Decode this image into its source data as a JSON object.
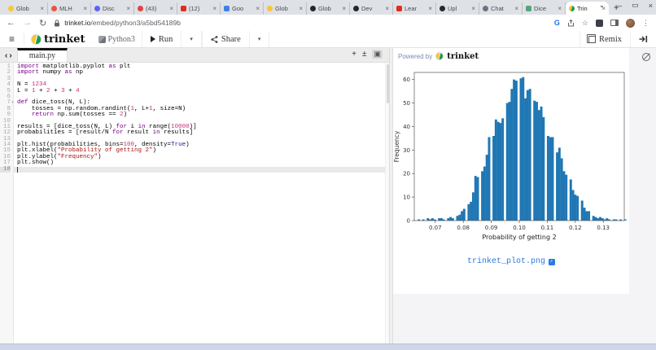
{
  "browser": {
    "tabs": [
      {
        "label": "Glob",
        "icon": "globe-yellow-favicon",
        "color": "#f8c735",
        "shape": "circle",
        "active": false
      },
      {
        "label": "MLH",
        "icon": "pencil-favicon",
        "color": "#e8563f",
        "shape": "circle",
        "active": false
      },
      {
        "label": "Disc",
        "icon": "discord-favicon",
        "color": "#5865f2",
        "shape": "circle",
        "active": false
      },
      {
        "label": "(43)",
        "icon": "red-badge-favicon",
        "color": "#e04343",
        "shape": "circle",
        "active": false
      },
      {
        "label": "(12)",
        "icon": "youtube-favicon",
        "color": "#e02b20",
        "shape": "square",
        "active": false
      },
      {
        "label": "Goo",
        "icon": "google-docs-favicon",
        "color": "#3b82e8",
        "shape": "square",
        "active": false
      },
      {
        "label": "Glob",
        "icon": "globe-yellow-favicon",
        "color": "#f8c735",
        "shape": "circle",
        "active": false
      },
      {
        "label": "Glob",
        "icon": "dark-circle-favicon",
        "color": "#23272e",
        "shape": "circle",
        "active": false
      },
      {
        "label": "Dev",
        "icon": "dark-circle-favicon",
        "color": "#23272e",
        "shape": "circle",
        "active": false
      },
      {
        "label": "Lear",
        "icon": "youtube-favicon",
        "color": "#e02b20",
        "shape": "square",
        "active": false
      },
      {
        "label": "Upl",
        "icon": "github-favicon",
        "color": "#24292f",
        "shape": "circle",
        "active": false
      },
      {
        "label": "Chat",
        "icon": "gray-sphere-favicon",
        "color": "#6b7280",
        "shape": "circle",
        "active": false
      },
      {
        "label": "Dice",
        "icon": "green-square-favicon",
        "color": "#55a47b",
        "shape": "square",
        "active": false
      },
      {
        "label": "Trin",
        "icon": "trinket-favicon",
        "color": "trinket",
        "shape": "circle",
        "active": true
      }
    ],
    "close_glyph": "×",
    "new_tab": "+",
    "window_controls": {
      "search": "⌄",
      "minimize": "—",
      "maximize": "▭",
      "close": "×"
    },
    "nav": {
      "back": "←",
      "forward": "→",
      "reload": "↻"
    },
    "url_host": "trinket.io",
    "url_path": "/embed/python3/a5bd54189b",
    "right_icons": {
      "g": "G",
      "star": "☆",
      "kebab": "⋮"
    }
  },
  "toolbar": {
    "hamburger": "≡",
    "brand": "trinket",
    "language": "Python3",
    "run_label": "Run",
    "share_label": "Share",
    "caret": "▾",
    "remix_label": "Remix"
  },
  "editor": {
    "tab": "main.py",
    "nav_left": "‹",
    "nav_right": "›",
    "add_icon": "+",
    "upload_icon": "±",
    "image_icon": "▣",
    "active_line": 18,
    "fold_line": 7,
    "lines": [
      [
        [
          "k",
          "import"
        ],
        [
          "p",
          " matplotlib.pyplot "
        ],
        [
          "k",
          "as"
        ],
        [
          "p",
          " plt"
        ]
      ],
      [
        [
          "k",
          "import"
        ],
        [
          "p",
          " numpy "
        ],
        [
          "k",
          "as"
        ],
        [
          "p",
          " np"
        ]
      ],
      [],
      [
        [
          "p",
          "N = "
        ],
        [
          "n",
          "1234"
        ]
      ],
      [
        [
          "p",
          "L = "
        ],
        [
          "n",
          "1"
        ],
        [
          "p",
          " + "
        ],
        [
          "n",
          "2"
        ],
        [
          "p",
          " + "
        ],
        [
          "n",
          "3"
        ],
        [
          "p",
          " + "
        ],
        [
          "n",
          "4"
        ]
      ],
      [],
      [
        [
          "k",
          "def"
        ],
        [
          "p",
          " dice_toss(N, L):"
        ]
      ],
      [
        [
          "p",
          "    tosses = np.random.randint("
        ],
        [
          "n",
          "1"
        ],
        [
          "p",
          ", L+"
        ],
        [
          "n",
          "1"
        ],
        [
          "p",
          ", size=N)"
        ]
      ],
      [
        [
          "p",
          "    "
        ],
        [
          "k",
          "return"
        ],
        [
          "p",
          " np.sum(tosses == "
        ],
        [
          "n",
          "2"
        ],
        [
          "p",
          ")"
        ]
      ],
      [],
      [
        [
          "p",
          "results = [dice_toss(N, L) "
        ],
        [
          "k",
          "for"
        ],
        [
          "p",
          " i "
        ],
        [
          "k",
          "in"
        ],
        [
          "p",
          " range("
        ],
        [
          "n",
          "10000"
        ],
        [
          "p",
          ")]"
        ]
      ],
      [
        [
          "p",
          "probabilities = [result/N "
        ],
        [
          "k",
          "for"
        ],
        [
          "p",
          " result "
        ],
        [
          "k",
          "in"
        ],
        [
          "p",
          " results]"
        ]
      ],
      [],
      [
        [
          "p",
          "plt.hist(probabilities, bins="
        ],
        [
          "n",
          "100"
        ],
        [
          "p",
          ", density="
        ],
        [
          "a",
          "True"
        ],
        [
          "p",
          ")"
        ]
      ],
      [
        [
          "p",
          "plt.xlabel("
        ],
        [
          "s",
          "\"Probability of getting 2\""
        ],
        [
          "p",
          ")"
        ]
      ],
      [
        [
          "p",
          "plt.ylabel("
        ],
        [
          "s",
          "\"Frequency\""
        ],
        [
          "p",
          ")"
        ]
      ],
      [
        [
          "p",
          "plt.show()"
        ]
      ],
      []
    ]
  },
  "output": {
    "powered_by": "Powered by",
    "brand": "trinket",
    "plot_link": "trinket_plot.png"
  },
  "chart_data": {
    "type": "bar",
    "title": "",
    "xlabel": "Probability of getting 2",
    "ylabel": "Frequency",
    "xlim": [
      0.0625,
      0.1375
    ],
    "ylim": [
      0,
      63
    ],
    "xticks": [
      0.07,
      0.08,
      0.09,
      0.1,
      0.11,
      0.12,
      0.13
    ],
    "yticks": [
      0,
      10,
      20,
      30,
      40,
      50,
      60
    ],
    "bar_color": "#1f77b4",
    "bin_start": 0.0637,
    "bin_width": 0.00081,
    "frequencies": [
      0.5,
      0,
      0.5,
      0,
      1,
      0.5,
      1,
      0.5,
      0,
      1,
      1,
      0.5,
      0,
      1,
      1.5,
      1,
      0,
      2,
      2.5,
      4,
      5,
      0,
      7,
      8,
      12,
      19,
      18.5,
      0,
      21,
      23,
      28,
      35.5,
      0,
      36,
      43,
      42,
      41.5,
      43.5,
      0,
      50,
      50.5,
      56,
      60,
      59.5,
      0,
      60.5,
      61,
      52,
      55.5,
      56,
      0,
      51,
      50.5,
      47,
      48.5,
      44,
      0,
      36,
      35.5,
      35.5,
      0,
      29,
      31,
      26.5,
      21,
      19.5,
      0,
      17.5,
      13,
      11,
      10.5,
      0,
      8.5,
      5.5,
      4,
      4,
      0,
      2,
      1.5,
      1,
      1.5,
      1,
      0.5,
      1,
      0.5,
      0,
      0.5,
      0.5,
      0,
      0.5,
      0,
      0.5
    ]
  }
}
